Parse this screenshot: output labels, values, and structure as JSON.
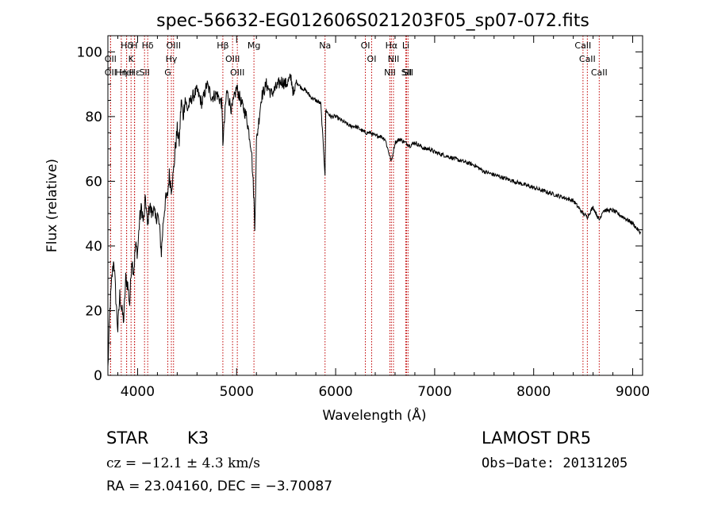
{
  "chart_data": {
    "type": "line",
    "title": "spec-56632-EG012606S021203F05_sp07-072.fits",
    "xlabel": "Wavelength (Å)",
    "ylabel": "Flux (relative)",
    "xlim": [
      3700,
      9100
    ],
    "ylim": [
      0,
      105
    ],
    "xticks": [
      4000,
      5000,
      6000,
      7000,
      8000,
      9000
    ],
    "xtick_labels": [
      "4000",
      "5000",
      "6000",
      "7000",
      "8000",
      "9000"
    ],
    "yticks": [
      0,
      20,
      40,
      60,
      80,
      100
    ],
    "ytick_labels": [
      "0",
      "20",
      "40",
      "60",
      "80",
      "100"
    ],
    "grid": false,
    "series": [
      {
        "x": [
          3700,
          3720,
          3740,
          3760,
          3780,
          3800,
          3820,
          3840,
          3860,
          3880,
          3900,
          3920,
          3940,
          3960,
          3980,
          4000,
          4020,
          4040,
          4060,
          4080,
          4100,
          4120,
          4140,
          4160,
          4180,
          4200,
          4220,
          4240,
          4260,
          4280,
          4300,
          4320,
          4340,
          4360,
          4380,
          4400,
          4420,
          4440,
          4460,
          4480,
          4500,
          4550,
          4600,
          4650,
          4700,
          4750,
          4800,
          4850,
          4861,
          4900,
          4950,
          5000,
          5050,
          5100,
          5150,
          5175,
          5183,
          5200,
          5250,
          5300,
          5350,
          5400,
          5450,
          5500,
          5550,
          5580,
          5600,
          5650,
          5700,
          5750,
          5800,
          5850,
          5893,
          5900,
          5950,
          6000,
          6050,
          6100,
          6150,
          6200,
          6250,
          6300,
          6350,
          6400,
          6450,
          6500,
          6563,
          6600,
          6650,
          6700,
          6750,
          6800,
          6850,
          6900,
          6950,
          7000,
          7100,
          7200,
          7300,
          7400,
          7500,
          7600,
          7700,
          7800,
          7900,
          8000,
          8100,
          8200,
          8300,
          8400,
          8498,
          8542,
          8600,
          8662,
          8700,
          8800,
          8900,
          9000,
          9050,
          9080
        ],
        "y": [
          2,
          20,
          30,
          36,
          24,
          14,
          25,
          20,
          17,
          30,
          28,
          22,
          36,
          32,
          40,
          38,
          48,
          52,
          47,
          55,
          46,
          53,
          50,
          52,
          48,
          50,
          46,
          38,
          48,
          54,
          55,
          62,
          58,
          62,
          70,
          76,
          72,
          85,
          80,
          86,
          82,
          86,
          88,
          84,
          90,
          86,
          87,
          84,
          72,
          88,
          82,
          89,
          84,
          80,
          70,
          54,
          45,
          72,
          86,
          90,
          87,
          89,
          91,
          90,
          92,
          86,
          91,
          89,
          88,
          86,
          85,
          84,
          62,
          82,
          80,
          80,
          79,
          78,
          77,
          77,
          76,
          75,
          75,
          74,
          74,
          73,
          66,
          72,
          73,
          72,
          71,
          72,
          71,
          70,
          70,
          69,
          68,
          67,
          66,
          65,
          63,
          62,
          61,
          60,
          59,
          58,
          57,
          56,
          55,
          54,
          50,
          49,
          52,
          48,
          51,
          51,
          49,
          47,
          45,
          44
        ]
      }
    ],
    "lines": [
      {
        "label": "Hδ",
        "x": 3889
      },
      {
        "label": "K",
        "x": 3934
      },
      {
        "label": "Hε",
        "x": 3970
      },
      {
        "label": "OII",
        "x": 3727
      },
      {
        "label": "HeI",
        "x": 3889
      },
      {
        "label": "Hη",
        "x": 3835
      },
      {
        "label": "OII",
        "x": 3727
      },
      {
        "label": "H",
        "x": 3968
      },
      {
        "label": "Hδ",
        "x": 4102
      },
      {
        "label": "SII",
        "x": 4070
      },
      {
        "label": "OIII",
        "x": 4363
      },
      {
        "label": "Hγ",
        "x": 4341
      },
      {
        "label": "G",
        "x": 4305
      },
      {
        "label": "Hβ",
        "x": 4861
      },
      {
        "label": "OIII",
        "x": 4959
      },
      {
        "label": "OIII",
        "x": 5007
      },
      {
        "label": "Mg",
        "x": 5175
      },
      {
        "label": "Na",
        "x": 5893
      },
      {
        "label": "OI",
        "x": 6300
      },
      {
        "label": "OI",
        "x": 6364
      },
      {
        "label": "Hα",
        "x": 6563
      },
      {
        "label": "NII",
        "x": 6548
      },
      {
        "label": "NII",
        "x": 6584
      },
      {
        "label": "SII",
        "x": 6716
      },
      {
        "label": "Li",
        "x": 6708
      },
      {
        "label": "SII",
        "x": 6731
      },
      {
        "label": "CaII",
        "x": 8498
      },
      {
        "label": "CaII",
        "x": 8542
      },
      {
        "label": "CaII",
        "x": 8662
      }
    ]
  },
  "info": {
    "class_label": "STAR",
    "subclass": "K3",
    "survey": "LAMOST DR5",
    "cz_text": "cz = −12.1 ± 4.3 km/s",
    "obs_date_text": "Obs−Date: 20131205",
    "radec_text": "RA =  23.04160, DEC =  −3.70087"
  }
}
